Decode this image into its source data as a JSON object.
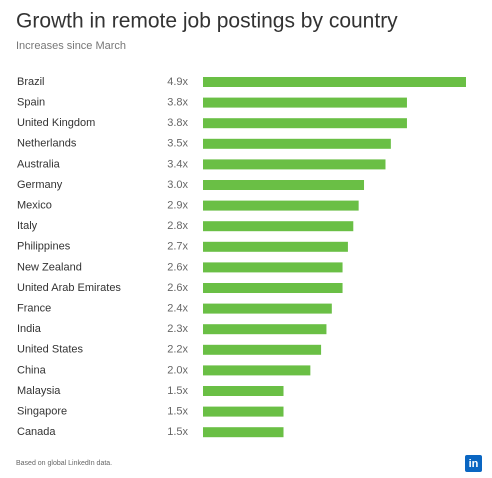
{
  "chart_data": {
    "type": "bar",
    "orientation": "horizontal",
    "title": "Growth in remote job postings by country",
    "subtitle": "Increases since March",
    "categories": [
      "Brazil",
      "Spain",
      "United Kingdom",
      "Netherlands",
      "Australia",
      "Germany",
      "Mexico",
      "Italy",
      "Philippines",
      "New Zealand",
      "United Arab Emirates",
      "France",
      "India",
      "United States",
      "China",
      "Malaysia",
      "Singapore",
      "Canada"
    ],
    "values": [
      4.9,
      3.8,
      3.8,
      3.5,
      3.4,
      3.0,
      2.9,
      2.8,
      2.7,
      2.6,
      2.6,
      2.4,
      2.3,
      2.2,
      2.0,
      1.5,
      1.5,
      1.5
    ],
    "value_labels": [
      "4.9x",
      "3.8x",
      "3.8x",
      "3.5x",
      "3.4x",
      "3.0x",
      "2.9x",
      "2.8x",
      "2.7x",
      "2.6x",
      "2.6x",
      "2.4x",
      "2.3x",
      "2.2x",
      "2.0x",
      "1.5x",
      "1.5x",
      "1.5x"
    ],
    "color": "#6abf45",
    "footnote": "Based on global LinkedIn data.",
    "logo": "in"
  }
}
